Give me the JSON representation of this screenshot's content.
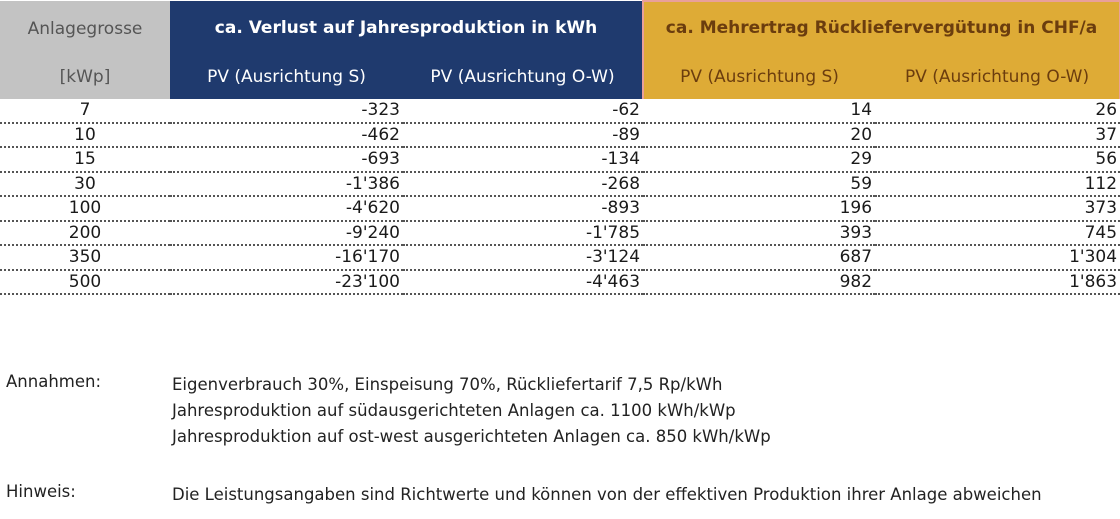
{
  "table": {
    "header": {
      "size_title": "Anlagegrosse",
      "size_unit": "[kWp]",
      "loss_title": "ca. Verlust auf Jahresproduktion in kWh",
      "gain_title": "ca. Mehrertrag Rückliefervergütung in CHF/a",
      "sub_loss_s": "PV (Ausrichtung S)",
      "sub_loss_ow": "PV (Ausrichtung O-W)",
      "sub_gain_s": "PV (Ausrichtung S)",
      "sub_gain_ow": "PV (Ausrichtung O-W)"
    },
    "rows": [
      {
        "size": "7",
        "loss_s": "-323",
        "loss_ow": "-62",
        "gain_s": "14",
        "gain_ow": "26"
      },
      {
        "size": "10",
        "loss_s": "-462",
        "loss_ow": "-89",
        "gain_s": "20",
        "gain_ow": "37"
      },
      {
        "size": "15",
        "loss_s": "-693",
        "loss_ow": "-134",
        "gain_s": "29",
        "gain_ow": "56"
      },
      {
        "size": "30",
        "loss_s": "-1'386",
        "loss_ow": "-268",
        "gain_s": "59",
        "gain_ow": "112"
      },
      {
        "size": "100",
        "loss_s": "-4'620",
        "loss_ow": "-893",
        "gain_s": "196",
        "gain_ow": "373"
      },
      {
        "size": "200",
        "loss_s": "-9'240",
        "loss_ow": "-1'785",
        "gain_s": "393",
        "gain_ow": "745"
      },
      {
        "size": "350",
        "loss_s": "-16'170",
        "loss_ow": "-3'124",
        "gain_s": "687",
        "gain_ow": "1'304"
      },
      {
        "size": "500",
        "loss_s": "-23'100",
        "loss_ow": "-4'463",
        "gain_s": "982",
        "gain_ow": "1'863"
      }
    ]
  },
  "notes": {
    "assumptions_label": "Annahmen:",
    "assumptions": [
      "Eigenverbrauch 30%, Einspeisung 70%, Rückliefertarif 7,5 Rp/kWh",
      "Jahresproduktion auf südausgerichteten Anlagen ca. 1100 kWh/kWp",
      "Jahresproduktion auf ost-west ausgerichteten Anlagen ca. 850 kWh/kWp"
    ],
    "hint_label": "Hinweis:",
    "hint": "Die Leistungsangaben sind Richtwerte und können von der effektiven Produktion ihrer Anlage abweichen"
  },
  "colors": {
    "header_size_bg": "#c3c3c3",
    "header_loss_bg": "#1f3a6e",
    "header_gain_bg": "#deab36",
    "header_gain_text": "#6b3d0e"
  }
}
